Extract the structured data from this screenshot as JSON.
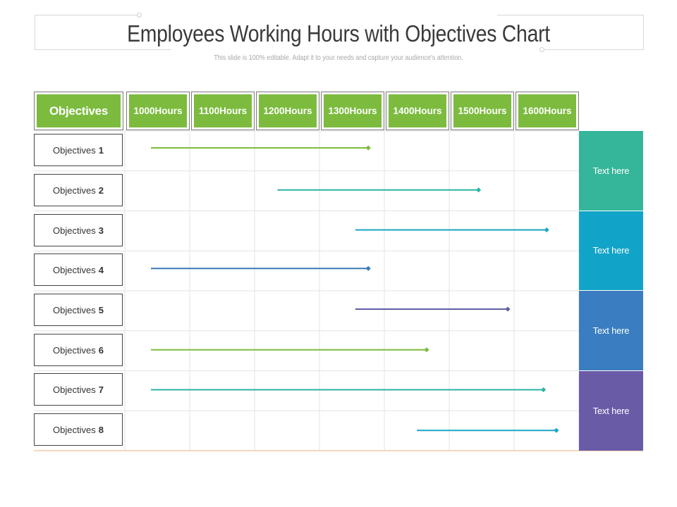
{
  "header": {
    "title": "Employees Working Hours with Objectives Chart",
    "subtitle": "This slide is 100% editable. Adapt it to your needs and capture your audience's attention."
  },
  "chart_data": {
    "type": "range-bar",
    "column_header": "Objectives",
    "hour_columns": [
      {
        "top": "1000",
        "bottom": "Hours"
      },
      {
        "top": "1100",
        "bottom": "Hours"
      },
      {
        "top": "1200",
        "bottom": "Hours"
      },
      {
        "top": "1300",
        "bottom": "Hours"
      },
      {
        "top": "1400",
        "bottom": "Hours"
      },
      {
        "top": "1500",
        "bottom": "Hours"
      },
      {
        "top": "1600",
        "bottom": "Hours"
      }
    ],
    "rows": [
      {
        "label": "Objectives",
        "number": "1",
        "start": 1000,
        "end": 1335,
        "color": "#7cbb3e"
      },
      {
        "label": "Objectives",
        "number": "2",
        "start": 1195,
        "end": 1505,
        "color": "#2bb3a3"
      },
      {
        "label": "Objectives",
        "number": "3",
        "start": 1315,
        "end": 1610,
        "color": "#1aa6c4"
      },
      {
        "label": "Objectives",
        "number": "4",
        "start": 1000,
        "end": 1335,
        "color": "#3a7ab8"
      },
      {
        "label": "Objectives",
        "number": "5",
        "start": 1315,
        "end": 1550,
        "color": "#5f5ea5"
      },
      {
        "label": "Objectives",
        "number": "6",
        "start": 1000,
        "end": 1425,
        "color": "#7cbb3e"
      },
      {
        "label": "Objectives",
        "number": "7",
        "start": 1000,
        "end": 1605,
        "color": "#2bb3a3"
      },
      {
        "label": "Objectives",
        "number": "8",
        "start": 1410,
        "end": 1625,
        "color": "#1aa6c4"
      }
    ],
    "side_blocks": [
      {
        "text": "Text here",
        "color": "#35b59a"
      },
      {
        "text": "Text here",
        "color": "#12a4c8"
      },
      {
        "text": "Text here",
        "color": "#3a7dc0"
      },
      {
        "text": "Text here",
        "color": "#6a5ba7"
      }
    ],
    "grid": true
  }
}
